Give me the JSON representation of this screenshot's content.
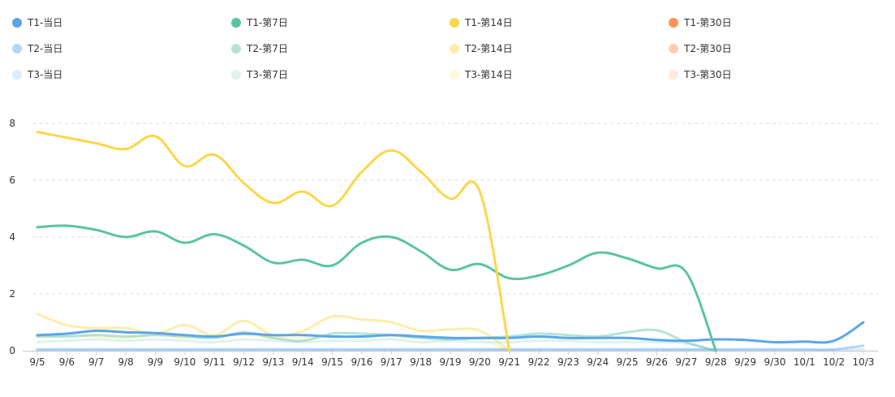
{
  "chart_data": {
    "type": "line",
    "title": "",
    "xlabel": "",
    "ylabel": "",
    "ylim": [
      0,
      8
    ],
    "yticks": [
      "0",
      "2",
      "4",
      "6",
      "8"
    ],
    "grid": "horizontal dashed",
    "legend_placement": "top",
    "categories": [
      "9/5",
      "9/6",
      "9/7",
      "9/8",
      "9/9",
      "9/10",
      "9/11",
      "9/12",
      "9/13",
      "9/14",
      "9/15",
      "9/16",
      "9/17",
      "9/18",
      "9/19",
      "9/20",
      "9/21",
      "9/22",
      "9/23",
      "9/24",
      "9/25",
      "9/26",
      "9/27",
      "9/28",
      "9/29",
      "9/30",
      "10/1",
      "10/2",
      "10/3"
    ],
    "series": [
      {
        "name": "T1-当日",
        "color": "#5aa5ec",
        "opacity": 1.0,
        "values": [
          0.55,
          0.6,
          0.7,
          0.65,
          0.62,
          0.55,
          0.5,
          0.6,
          0.55,
          0.55,
          0.5,
          0.5,
          0.55,
          0.5,
          0.45,
          0.45,
          0.45,
          0.5,
          0.45,
          0.45,
          0.45,
          0.38,
          0.35,
          0.4,
          0.38,
          0.3,
          0.32,
          0.35,
          1.0
        ]
      },
      {
        "name": "T1-第7日",
        "color": "#5bc49f",
        "opacity": 1.0,
        "values": [
          4.35,
          4.4,
          4.25,
          4.0,
          4.2,
          3.8,
          4.1,
          3.7,
          3.1,
          3.2,
          3.0,
          3.8,
          4.0,
          3.5,
          2.85,
          3.05,
          2.55,
          2.65,
          3.0,
          3.45,
          3.25,
          2.9,
          2.75,
          0.0,
          null,
          null,
          null,
          null,
          null
        ]
      },
      {
        "name": "T1-第14日",
        "color": "#fcd64a",
        "opacity": 1.0,
        "values": [
          7.7,
          7.5,
          7.3,
          7.1,
          7.55,
          6.5,
          6.9,
          5.9,
          5.2,
          5.6,
          5.1,
          6.3,
          7.05,
          6.3,
          5.35,
          5.6,
          0.0,
          null,
          null,
          null,
          null,
          null,
          null,
          null,
          null,
          null,
          null,
          null,
          null
        ]
      },
      {
        "name": "T1-第30日",
        "color": "#ff9355",
        "opacity": 1.0,
        "values": [
          null,
          null,
          null,
          null,
          null,
          null,
          null,
          null,
          null,
          null,
          null,
          null,
          null,
          null,
          null,
          null,
          null,
          null,
          null,
          null,
          null,
          null,
          null,
          null,
          null,
          null,
          null,
          null,
          null
        ]
      },
      {
        "name": "T2-当日",
        "color": "#5aa5ec",
        "opacity": 0.45,
        "values": [
          0.05,
          0.05,
          0.05,
          0.05,
          0.05,
          0.05,
          0.05,
          0.05,
          0.05,
          0.05,
          0.05,
          0.05,
          0.05,
          0.05,
          0.05,
          0.05,
          0.05,
          0.05,
          0.05,
          0.05,
          0.05,
          0.05,
          0.05,
          0.05,
          0.05,
          0.05,
          0.05,
          0.05,
          0.18
        ]
      },
      {
        "name": "T2-第7日",
        "color": "#5bc49f",
        "opacity": 0.45,
        "values": [
          0.5,
          0.5,
          0.55,
          0.5,
          0.55,
          0.5,
          0.45,
          0.65,
          0.45,
          0.35,
          0.6,
          0.6,
          0.55,
          0.45,
          0.4,
          0.45,
          0.5,
          0.6,
          0.55,
          0.5,
          0.65,
          0.72,
          0.3,
          0.0,
          null,
          null,
          null,
          null,
          null
        ]
      },
      {
        "name": "T2-第14日",
        "color": "#fcd64a",
        "opacity": 0.45,
        "values": [
          1.3,
          0.9,
          0.8,
          0.8,
          0.6,
          0.9,
          0.55,
          1.05,
          0.55,
          0.7,
          1.2,
          1.1,
          1.0,
          0.7,
          0.75,
          0.7,
          0.0,
          null,
          null,
          null,
          null,
          null,
          null,
          null,
          null,
          null,
          null,
          null,
          null
        ]
      },
      {
        "name": "T2-第30日",
        "color": "#ff9355",
        "opacity": 0.45,
        "values": [
          null,
          null,
          null,
          null,
          null,
          null,
          null,
          null,
          null,
          null,
          null,
          null,
          null,
          null,
          null,
          null,
          null,
          null,
          null,
          null,
          null,
          null,
          null,
          null,
          null,
          null,
          null,
          null,
          null
        ]
      },
      {
        "name": "T3-当日",
        "color": "#5aa5ec",
        "opacity": 0.2,
        "values": [
          0.02,
          0.02,
          0.02,
          0.02,
          0.02,
          0.02,
          0.02,
          0.02,
          0.02,
          0.02,
          0.02,
          0.02,
          0.02,
          0.02,
          0.02,
          0.02,
          0.02,
          0.02,
          0.02,
          0.02,
          0.02,
          0.02,
          0.02,
          0.02,
          0.02,
          0.02,
          0.02,
          0.02,
          0.05
        ]
      },
      {
        "name": "T3-第7日",
        "color": "#5bc49f",
        "opacity": 0.2,
        "values": [
          0.3,
          0.35,
          0.4,
          0.35,
          0.4,
          0.35,
          0.3,
          0.4,
          0.35,
          0.3,
          0.35,
          0.35,
          0.4,
          0.3,
          0.35,
          0.3,
          0.3,
          0.35,
          0.35,
          0.3,
          0.3,
          0.3,
          0.25,
          0.0,
          null,
          null,
          null,
          null,
          null
        ]
      },
      {
        "name": "T3-第14日",
        "color": "#fcd64a",
        "opacity": 0.2,
        "values": [
          0.5,
          0.55,
          0.5,
          0.45,
          0.55,
          0.45,
          0.5,
          0.55,
          0.45,
          0.45,
          0.5,
          0.5,
          0.55,
          0.45,
          0.45,
          0.4,
          0.0,
          null,
          null,
          null,
          null,
          null,
          null,
          null,
          null,
          null,
          null,
          null,
          null
        ]
      },
      {
        "name": "T3-第30日",
        "color": "#ff9355",
        "opacity": 0.2,
        "values": [
          null,
          null,
          null,
          null,
          null,
          null,
          null,
          null,
          null,
          null,
          null,
          null,
          null,
          null,
          null,
          null,
          null,
          null,
          null,
          null,
          null,
          null,
          null,
          null,
          null,
          null,
          null,
          null,
          null
        ]
      }
    ]
  }
}
